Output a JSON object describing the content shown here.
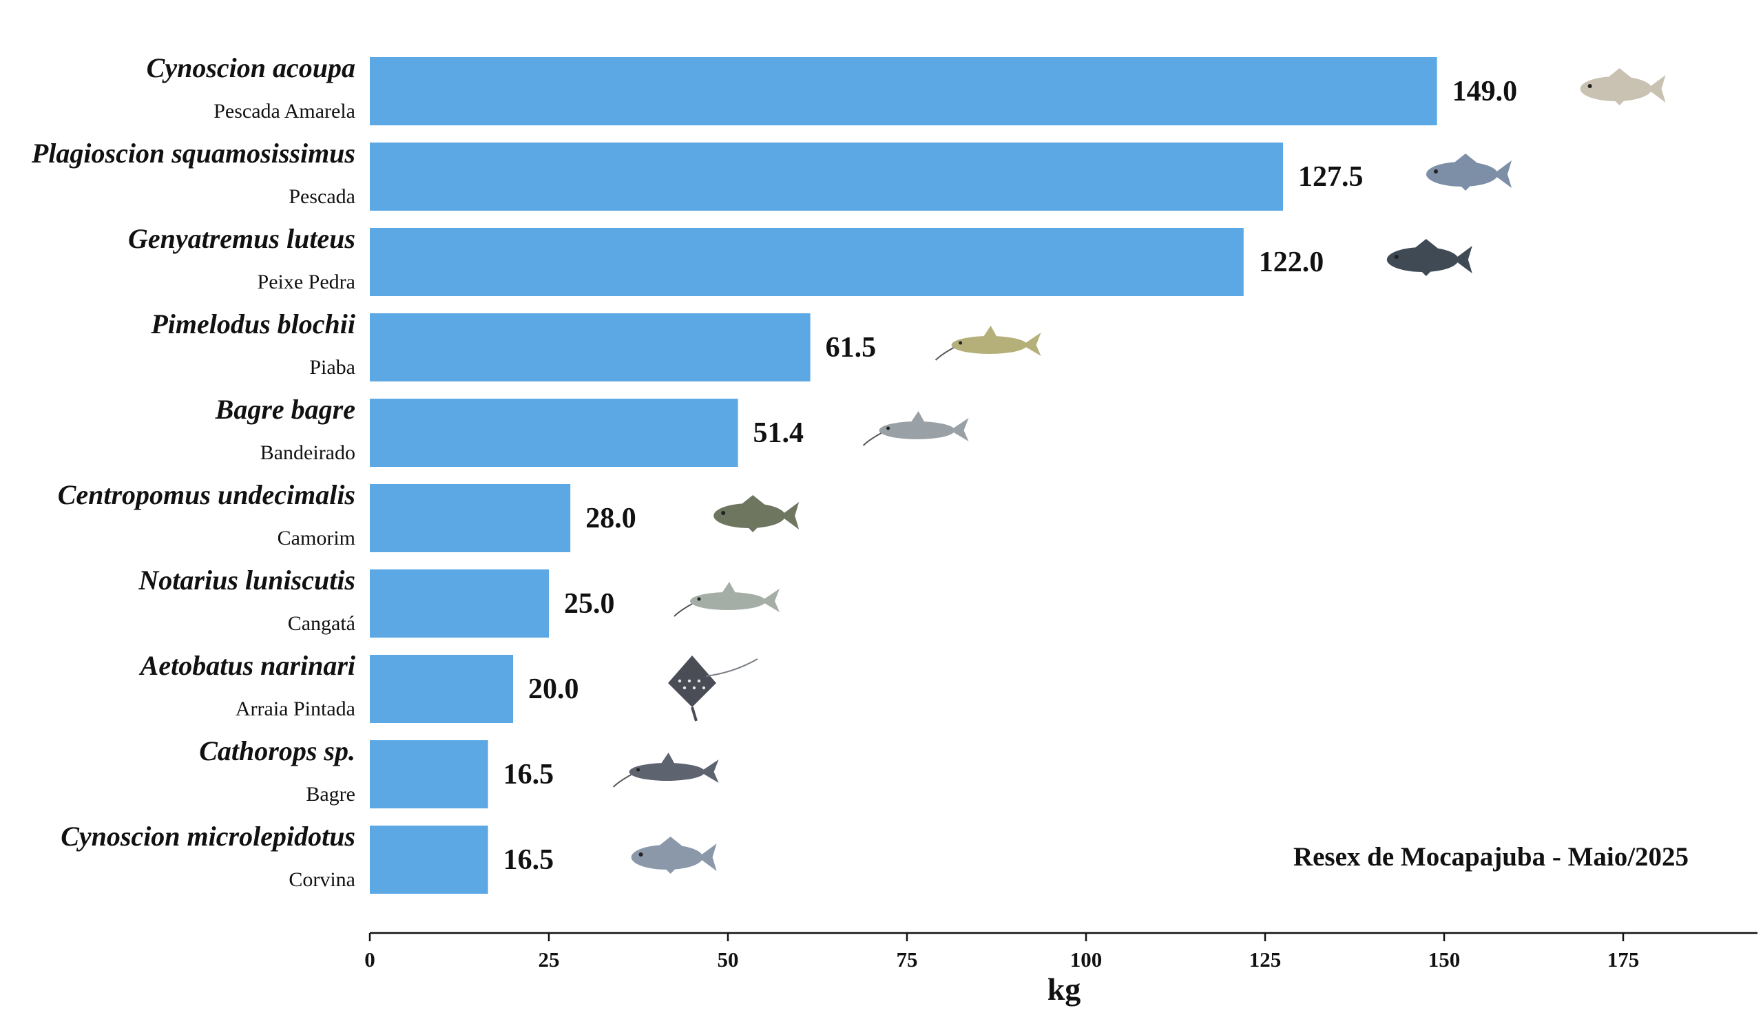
{
  "chart_data": {
    "type": "bar",
    "orientation": "horizontal",
    "title": "",
    "xlabel": "kg",
    "ylabel": "",
    "xlim": [
      0,
      193
    ],
    "xticks": [
      0,
      25,
      50,
      75,
      100,
      125,
      150,
      175
    ],
    "grid": false,
    "bar_color": "#5ba8e5",
    "annotation": "Resex de Mocapajuba - Maio/2025",
    "value_format": "1 decimal",
    "categories": [
      {
        "scientific": "Cynoscion acoupa",
        "common": "Pescada Amarela",
        "value": 149.0,
        "icon": "fish-icon"
      },
      {
        "scientific": "Plagioscion squamosissimus",
        "common": "Pescada",
        "value": 127.5,
        "icon": "fish-icon"
      },
      {
        "scientific": "Genyatremus luteus",
        "common": "Peixe Pedra",
        "value": 122.0,
        "icon": "fish-icon"
      },
      {
        "scientific": "Pimelodus blochii",
        "common": "Piaba",
        "value": 61.5,
        "icon": "catfish-icon"
      },
      {
        "scientific": "Bagre bagre",
        "common": "Bandeirado",
        "value": 51.4,
        "icon": "catfish-icon"
      },
      {
        "scientific": "Centropomus undecimalis",
        "common": "Camorim",
        "value": 28.0,
        "icon": "fish-icon"
      },
      {
        "scientific": "Notarius luniscutis",
        "common": "Cangatá",
        "value": 25.0,
        "icon": "catfish-icon"
      },
      {
        "scientific": "Aetobatus narinari",
        "common": "Arraia Pintada",
        "value": 20.0,
        "icon": "ray-icon"
      },
      {
        "scientific": "Cathorops sp.",
        "common": "Bagre",
        "value": 16.5,
        "icon": "catfish-icon"
      },
      {
        "scientific": "Cynoscion microlepidotus",
        "common": "Corvina",
        "value": 16.5,
        "icon": "fish-icon"
      }
    ]
  }
}
